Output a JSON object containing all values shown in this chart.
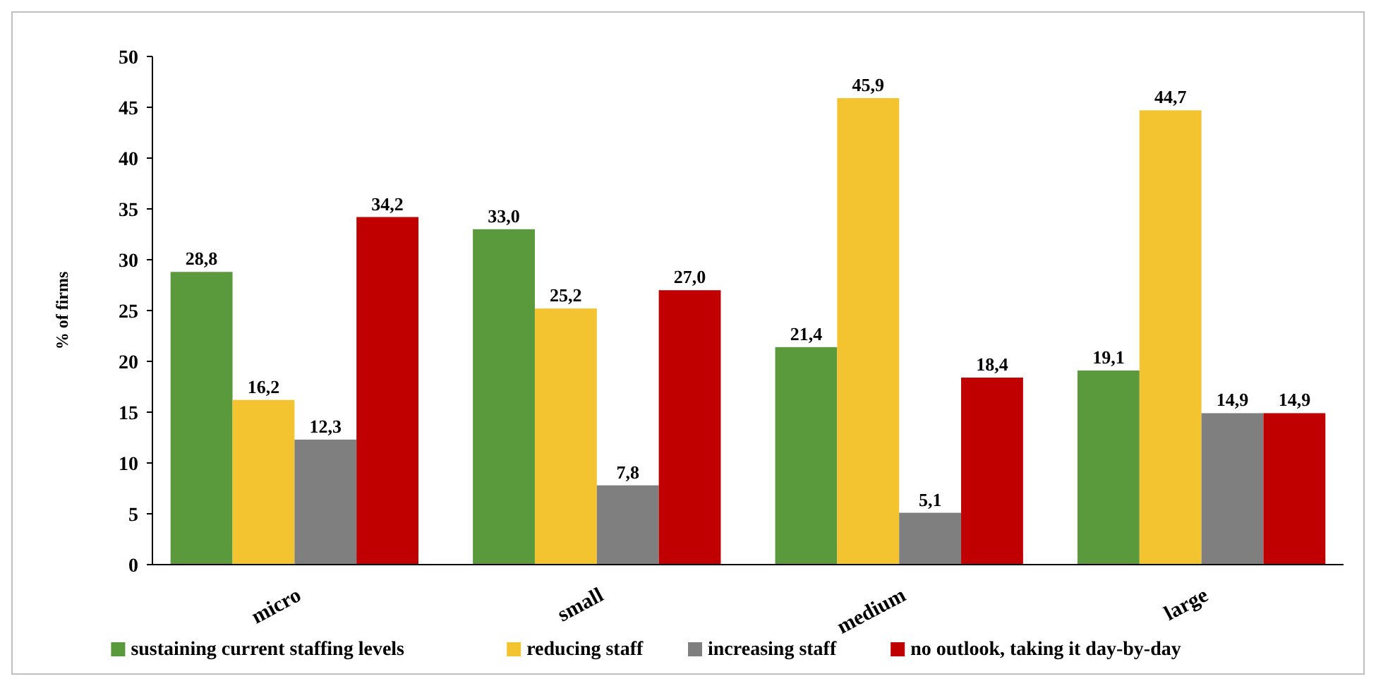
{
  "chart_data": {
    "type": "bar",
    "ylabel": "% of firms",
    "categories": [
      "micro",
      "small",
      "medium",
      "large"
    ],
    "series": [
      {
        "name": "sustaining current staffing levels",
        "color": "#5b9a3c",
        "values": [
          28.8,
          33.0,
          21.4,
          19.1
        ],
        "value_labels": [
          "28,8",
          "33,0",
          "21,4",
          "19,1"
        ]
      },
      {
        "name": "reducing staff",
        "color": "#f4c430",
        "values": [
          16.2,
          25.2,
          45.9,
          44.7
        ],
        "value_labels": [
          "16,2",
          "25,2",
          "45,9",
          "44,7"
        ]
      },
      {
        "name": "increasing staff",
        "color": "#7f7f7f",
        "values": [
          12.3,
          7.8,
          5.1,
          14.9
        ],
        "value_labels": [
          "12,3",
          "7,8",
          "5,1",
          "14,9"
        ]
      },
      {
        "name": "no outlook, taking it day-by-day",
        "color": "#c00000",
        "values": [
          34.2,
          27.0,
          18.4,
          14.9
        ],
        "value_labels": [
          "34,2",
          "27,0",
          "18,4",
          "14,9"
        ]
      }
    ],
    "ylim": [
      0,
      50
    ],
    "yticks": [
      0,
      5,
      10,
      15,
      20,
      25,
      30,
      35,
      40,
      45,
      50
    ],
    "grid": false,
    "legend": "bottom"
  }
}
